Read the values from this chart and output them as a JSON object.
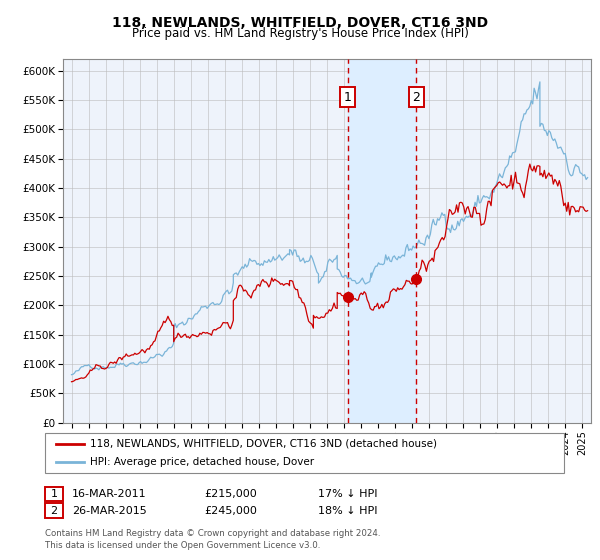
{
  "title": "118, NEWLANDS, WHITFIELD, DOVER, CT16 3ND",
  "subtitle": "Price paid vs. HM Land Registry's House Price Index (HPI)",
  "legend_line1": "118, NEWLANDS, WHITFIELD, DOVER, CT16 3ND (detached house)",
  "legend_line2": "HPI: Average price, detached house, Dover",
  "annotation1_label": "1",
  "annotation1_date": "16-MAR-2011",
  "annotation1_price": "£215,000",
  "annotation1_hpi": "17% ↓ HPI",
  "annotation2_label": "2",
  "annotation2_date": "26-MAR-2015",
  "annotation2_price": "£245,000",
  "annotation2_hpi": "18% ↓ HPI",
  "event1_x": 2011.21,
  "event1_y": 215000,
  "event2_x": 2015.23,
  "event2_y": 245000,
  "hpi_color": "#7ab4d8",
  "price_color": "#cc0000",
  "dot_color": "#cc0000",
  "vline_color": "#cc0000",
  "shade_color": "#ddeeff",
  "background_color": "#eef3fb",
  "grid_color": "#bbbbbb",
  "ylim_min": 0,
  "ylim_max": 620000,
  "xlim_min": 1994.5,
  "xlim_max": 2025.5,
  "yticks": [
    0,
    50000,
    100000,
    150000,
    200000,
    250000,
    300000,
    350000,
    400000,
    450000,
    500000,
    550000,
    600000
  ],
  "ytick_labels": [
    "£0",
    "£50K",
    "£100K",
    "£150K",
    "£200K",
    "£250K",
    "£300K",
    "£350K",
    "£400K",
    "£450K",
    "£500K",
    "£550K",
    "£600K"
  ],
  "footer": "Contains HM Land Registry data © Crown copyright and database right 2024.\nThis data is licensed under the Open Government Licence v3.0."
}
